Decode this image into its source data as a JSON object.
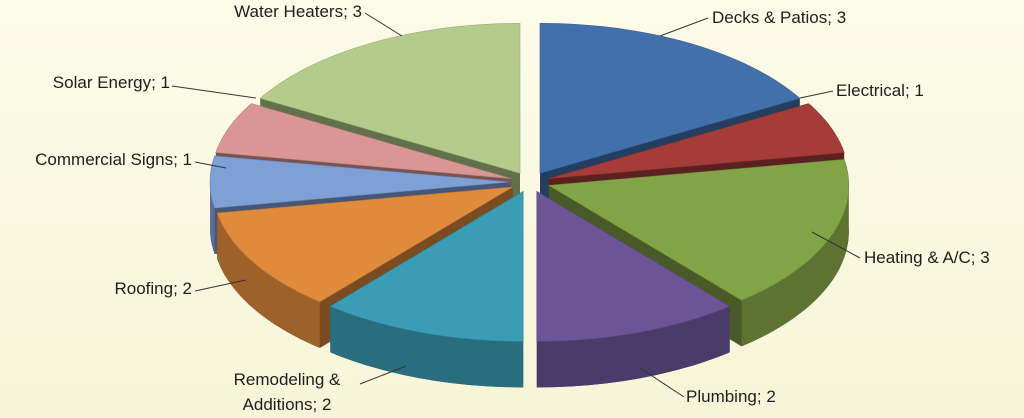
{
  "chart_data": {
    "type": "pie3d",
    "categories": [
      "Decks & Patios",
      "Electrical",
      "Heating & A/C",
      "Plumbing",
      "Remodeling & Additions",
      "Roofing",
      "Commercial Signs",
      "Solar Energy",
      "Water Heaters"
    ],
    "values": [
      3,
      1,
      3,
      2,
      2,
      2,
      1,
      1,
      3
    ],
    "colors": [
      "#4170ad",
      "#a63c3a",
      "#83a446",
      "#6b5597",
      "#3b9cb6",
      "#e08a3c",
      "#7f9fd7",
      "#d99694",
      "#b4cc8b"
    ],
    "label_separator": "; ",
    "exploded": true
  }
}
